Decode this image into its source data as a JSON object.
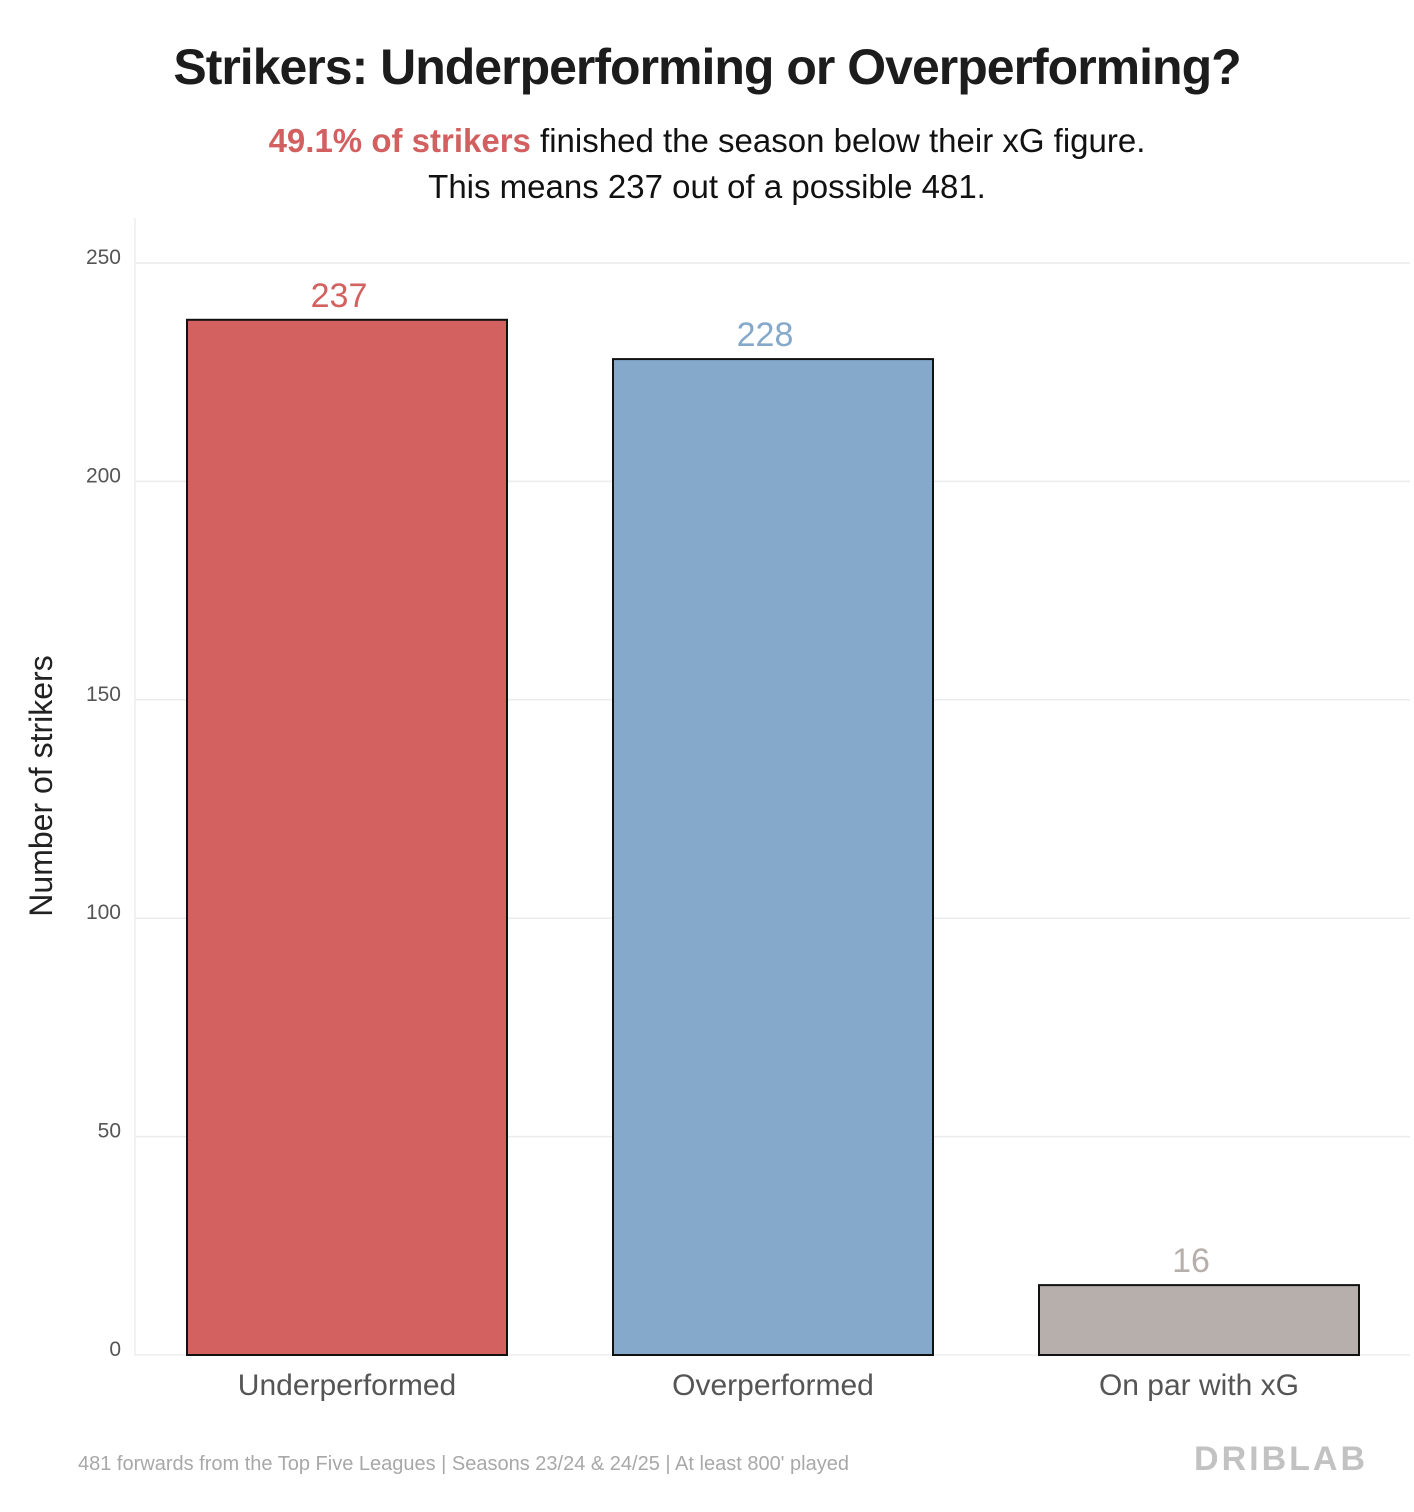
{
  "title": "Strikers: Underperforming or Overperforming?",
  "subtitle": {
    "highlight": "49.1% of strikers",
    "line1_rest": " finished the season below their xG figure.",
    "line2": "This means 237 out of a possible 481."
  },
  "colors": {
    "underperformed": "#d26160",
    "overperformed": "#85a9cb",
    "on_par": "#b7afab",
    "highlight": "#d26060"
  },
  "chart_data": {
    "type": "bar",
    "title": "Strikers: Underperforming or Overperforming?",
    "categories": [
      "Underperformed",
      "Overperformed",
      "On par with xG"
    ],
    "values": [
      237,
      228,
      16
    ],
    "data_labels": [
      "237",
      "228",
      "16"
    ],
    "xlabel": "",
    "ylabel": "Number of strikers",
    "ylim": [
      0,
      260
    ],
    "yticks": [
      0,
      50,
      100,
      150,
      200,
      250
    ],
    "grid": true
  },
  "footer": "481 forwards from the Top Five Leagues | Seasons 23/24 & 24/25 | At least 800' played",
  "brand": "DRIBLAB"
}
